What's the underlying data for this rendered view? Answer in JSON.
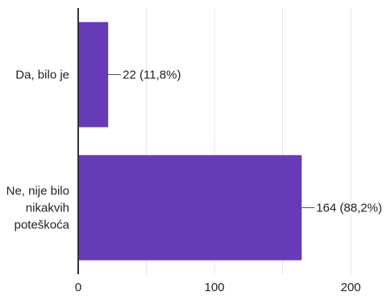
{
  "chart_data": {
    "type": "bar",
    "orientation": "horizontal",
    "categories": [
      [
        "Da, bilo je"
      ],
      [
        "Ne, nije bilo",
        "nikakvih",
        "poteškoća"
      ]
    ],
    "values": [
      22,
      164
    ],
    "data_labels": [
      "22 (11,8%)",
      "164 (88,2%)"
    ],
    "xticks": [
      "0",
      "100",
      "200"
    ],
    "xlim": [
      0,
      200
    ],
    "grid": true,
    "legend": "none",
    "bar_color": "#673ab7",
    "title": "",
    "xlabel": "",
    "ylabel": ""
  }
}
